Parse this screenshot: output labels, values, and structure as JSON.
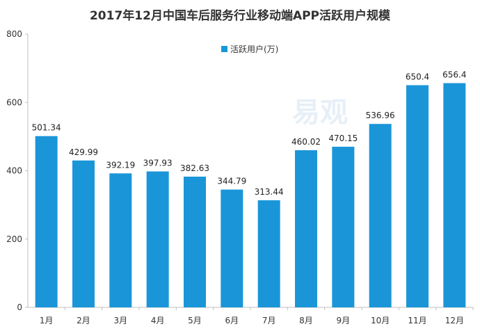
{
  "chart_data": {
    "type": "bar",
    "title": "2017年12月中国车后服务行业移动端APP活跃用户规模",
    "categories": [
      "1月",
      "2月",
      "3月",
      "4月",
      "5月",
      "6月",
      "7月",
      "8月",
      "9月",
      "10月",
      "11月",
      "12月"
    ],
    "series": [
      {
        "name": "活跃用户(万)",
        "values": [
          501.34,
          429.99,
          392.19,
          397.93,
          382.63,
          344.79,
          313.44,
          460.02,
          470.15,
          536.96,
          650.4,
          656.4
        ],
        "labels": [
          "501.34",
          "429.99",
          "392.19",
          "397.93",
          "382.63",
          "344.79",
          "313.44",
          "460.02",
          "470.15",
          "536.96",
          "650.4",
          "656.4"
        ]
      }
    ],
    "ylim": [
      0,
      800
    ],
    "yticks": [
      0,
      200,
      400,
      600,
      800
    ],
    "grid": false,
    "legend_position": "top-center",
    "colors": {
      "bar": "#1a96d8",
      "axis": "#bfbfbf",
      "watermark": "#bcd3ea"
    }
  },
  "watermark": {
    "text": "易观"
  }
}
